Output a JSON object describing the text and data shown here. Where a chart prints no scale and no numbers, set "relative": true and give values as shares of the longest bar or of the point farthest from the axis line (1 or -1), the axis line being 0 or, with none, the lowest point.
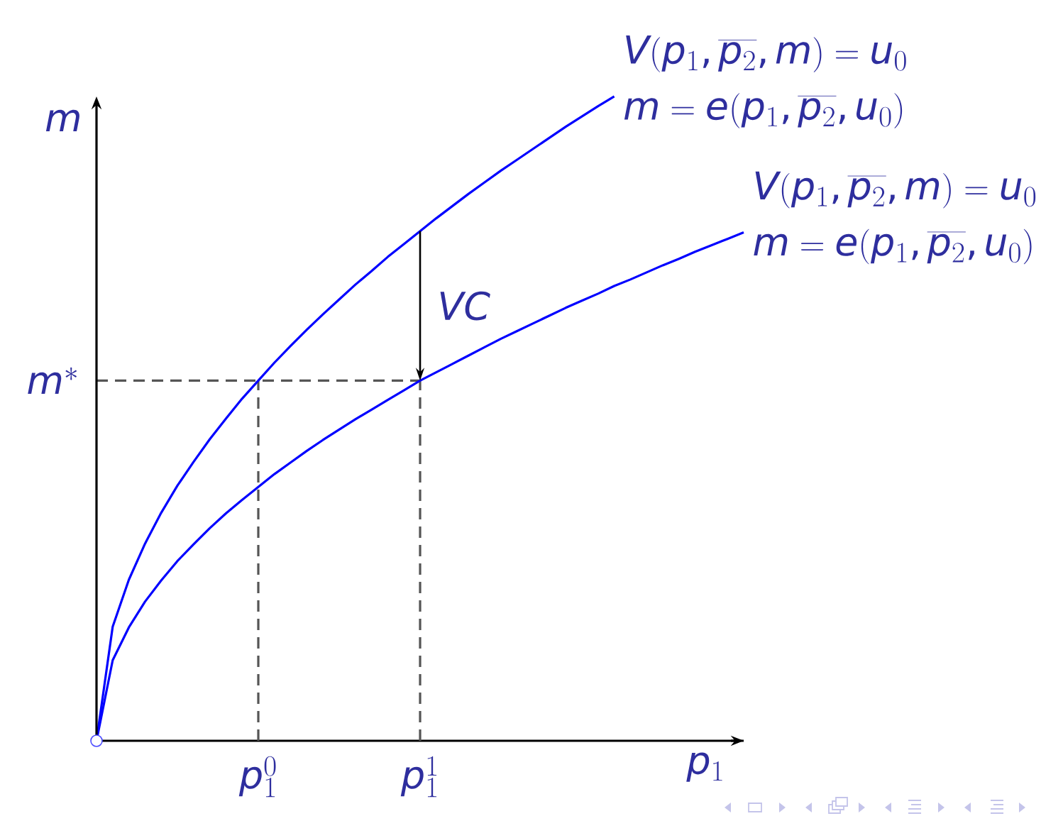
{
  "chart_data": {
    "type": "line",
    "relative": true,
    "tick_labels": "x",
    "xlabel": "p_1",
    "ylabel": "m",
    "categories": [
      null,
      null,
      null,
      null,
      null,
      null,
      null,
      null,
      null,
      null,
      "p_1^0",
      null,
      null,
      null,
      null,
      null,
      null,
      null,
      null,
      null,
      "p_1^1",
      null,
      null,
      null,
      null,
      null,
      null,
      null,
      null,
      null,
      null,
      null,
      null,
      null,
      null,
      null,
      null,
      null,
      null,
      null,
      null
    ],
    "series": [
      {
        "name": "V(p_1,\\overline{p_2},m)=u_0",
        "color": "#0000ff",
        "values": [
          0,
          0.177,
          0.25,
          0.306,
          0.354,
          0.396,
          0.433,
          0.468,
          0.5,
          0.531,
          0.559,
          0.587,
          0.613,
          0.638,
          0.662,
          0.685,
          0.708,
          0.729,
          0.751,
          0.771,
          0.791,
          0.811,
          0.83,
          0.849,
          0.867,
          0.885,
          0.902,
          0.919,
          0.936,
          0.953,
          0.969,
          0.985,
          1,
          null,
          null,
          null,
          null,
          null,
          null,
          null,
          null
        ]
      },
      {
        "name": "V(p_1,\\overline{p_2},m)=u_0",
        "color": "#0000ff",
        "values": [
          0,
          0.125,
          0.176,
          0.216,
          0.249,
          0.279,
          0.305,
          0.33,
          0.353,
          0.374,
          0.394,
          0.414,
          0.432,
          0.45,
          0.467,
          0.483,
          0.499,
          0.514,
          0.529,
          0.544,
          0.559,
          0.572,
          0.585,
          0.598,
          0.611,
          0.624,
          0.636,
          0.648,
          0.66,
          0.672,
          0.683,
          0.694,
          0.706,
          0.716,
          0.727,
          0.738,
          0.748,
          0.759,
          0.769,
          0.779,
          0.789
        ]
      }
    ],
    "ref_lines": [
      {
        "axis": "y",
        "value": 0.559,
        "label": "m^*",
        "color": "#555555",
        "line_style": "dashed"
      }
    ],
    "annotations": [
      "m=e(p_1,\\overline{p_2},u_0)",
      "m=e(p_1,\\overline{p_2},u_0)",
      "VC"
    ]
  }
}
